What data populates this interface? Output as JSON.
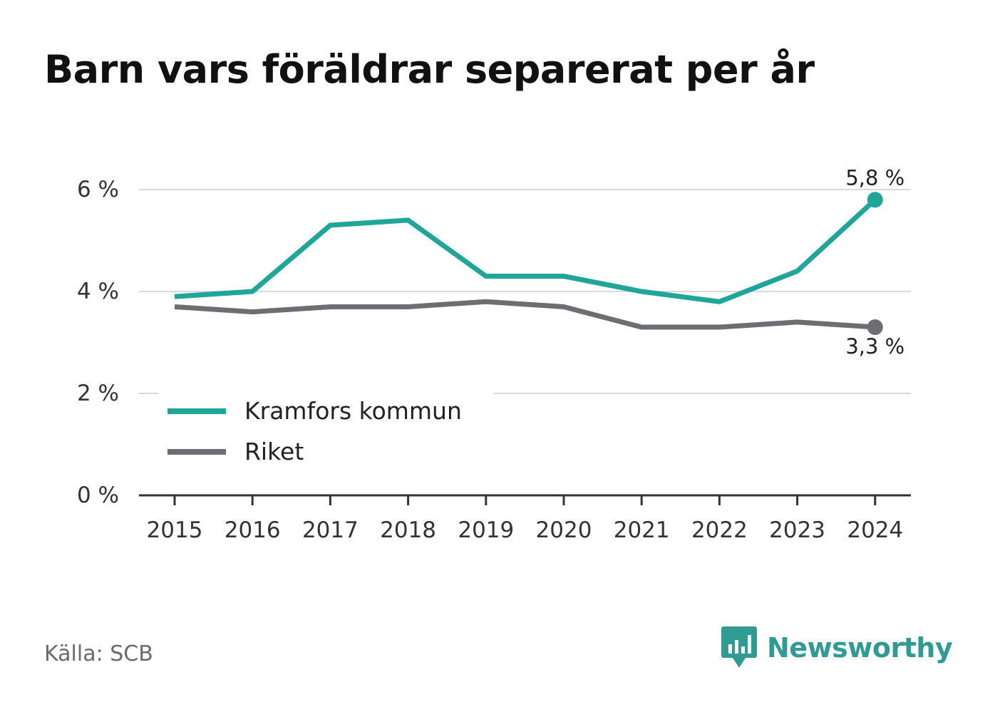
{
  "title": "Barn vars föräldrar separerat per år",
  "source": "Källa: SCB",
  "brand": "Newsworthy",
  "chart_data": {
    "type": "line",
    "title": "Barn vars föräldrar separerat per år",
    "categories": [
      "2015",
      "2016",
      "2017",
      "2018",
      "2019",
      "2020",
      "2021",
      "2022",
      "2023",
      "2024"
    ],
    "series": [
      {
        "name": "Kramfors kommun",
        "color": "#1fa599",
        "values": [
          3.9,
          4.0,
          5.3,
          5.4,
          4.3,
          4.3,
          4.0,
          3.8,
          4.4,
          5.8
        ],
        "end_label": "5,8 %"
      },
      {
        "name": "Riket",
        "color": "#6e6d74",
        "values": [
          3.7,
          3.6,
          3.7,
          3.7,
          3.8,
          3.7,
          3.3,
          3.3,
          3.4,
          3.3
        ],
        "end_label": "3,3 %"
      }
    ],
    "yticks": [
      0,
      2,
      4,
      6
    ],
    "ytick_labels": [
      "0 %",
      "2 %",
      "4 %",
      "6 %"
    ],
    "ylim": [
      0,
      6
    ],
    "grid": true,
    "legend_position": "bottom-left"
  }
}
